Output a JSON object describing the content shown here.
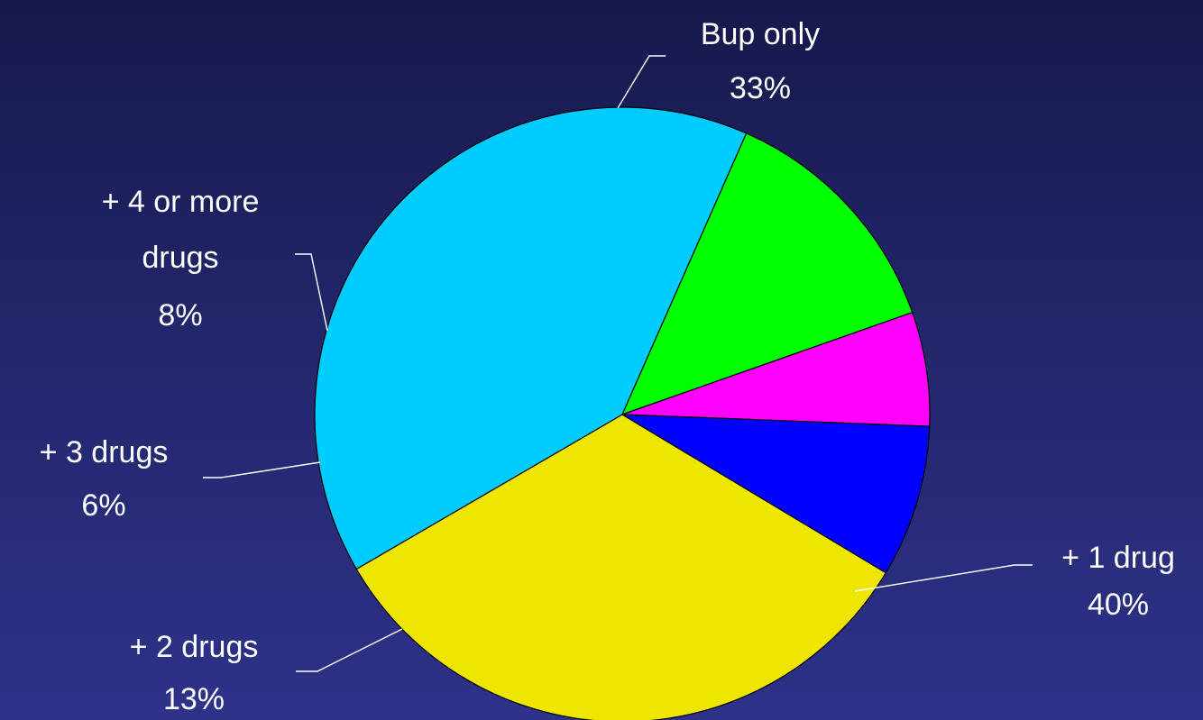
{
  "chart_data": {
    "type": "pie",
    "title": "",
    "slices": [
      {
        "label": "Bup only",
        "value": 33,
        "value_label": "33%",
        "color": "#eee600"
      },
      {
        "label": "+ 1 drug",
        "value": 40,
        "value_label": "40%",
        "color": "#00ccff"
      },
      {
        "label": "+ 2 drugs",
        "value": 13,
        "value_label": "13%",
        "color": "#00ff00"
      },
      {
        "label": "+ 3 drugs",
        "value": 6,
        "value_label": "6%",
        "color": "#ff00ff"
      },
      {
        "label": "+ 4 or more drugs",
        "value": 8,
        "value_label": "8%",
        "color": "#0000ff"
      }
    ],
    "legend": "none",
    "label_style": "outside labels with leader lines"
  }
}
